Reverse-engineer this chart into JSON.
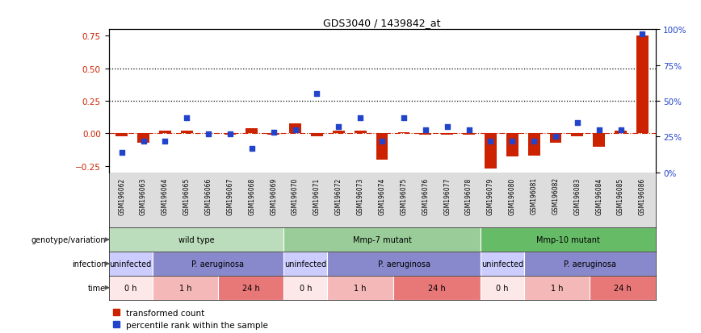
{
  "title": "GDS3040 / 1439842_at",
  "samples": [
    "GSM196062",
    "GSM196063",
    "GSM196064",
    "GSM196065",
    "GSM196066",
    "GSM196067",
    "GSM196068",
    "GSM196069",
    "GSM196070",
    "GSM196071",
    "GSM196072",
    "GSM196073",
    "GSM196074",
    "GSM196075",
    "GSM196076",
    "GSM196077",
    "GSM196078",
    "GSM196079",
    "GSM196080",
    "GSM196081",
    "GSM196082",
    "GSM196083",
    "GSM196084",
    "GSM196085",
    "GSM196086"
  ],
  "red_values": [
    -0.02,
    -0.07,
    0.02,
    0.02,
    0.0,
    -0.01,
    0.04,
    -0.01,
    0.08,
    -0.02,
    0.02,
    0.02,
    -0.2,
    0.01,
    -0.01,
    -0.01,
    -0.01,
    -0.27,
    -0.18,
    -0.17,
    -0.07,
    -0.02,
    -0.1,
    0.02,
    0.75
  ],
  "blue_values": [
    0.14,
    0.22,
    0.22,
    0.38,
    0.27,
    0.27,
    0.17,
    0.28,
    0.3,
    0.55,
    0.32,
    0.38,
    0.22,
    0.38,
    0.3,
    0.32,
    0.3,
    0.22,
    0.22,
    0.22,
    0.25,
    0.35,
    0.3,
    0.3,
    0.97
  ],
  "ylim_left": [
    -0.3,
    0.8
  ],
  "ylim_right": [
    0,
    100
  ],
  "yticks_left": [
    -0.25,
    0.0,
    0.25,
    0.5,
    0.75
  ],
  "yticks_right": [
    0,
    25,
    50,
    75,
    100
  ],
  "hlines": [
    0.25,
    0.5
  ],
  "red_color": "#cc2200",
  "blue_color": "#2244cc",
  "genotype_groups": [
    {
      "label": "wild type",
      "start": 0,
      "end": 8,
      "color": "#bbddbb"
    },
    {
      "label": "Mmp-7 mutant",
      "start": 8,
      "end": 17,
      "color": "#99cc99"
    },
    {
      "label": "Mmp-10 mutant",
      "start": 17,
      "end": 25,
      "color": "#66bb66"
    }
  ],
  "infection_groups": [
    {
      "label": "uninfected",
      "start": 0,
      "end": 2,
      "color": "#ccccff"
    },
    {
      "label": "P. aeruginosa",
      "start": 2,
      "end": 8,
      "color": "#8888cc"
    },
    {
      "label": "uninfected",
      "start": 8,
      "end": 10,
      "color": "#ccccff"
    },
    {
      "label": "P. aeruginosa",
      "start": 10,
      "end": 17,
      "color": "#8888cc"
    },
    {
      "label": "uninfected",
      "start": 17,
      "end": 19,
      "color": "#ccccff"
    },
    {
      "label": "P. aeruginosa",
      "start": 19,
      "end": 25,
      "color": "#8888cc"
    }
  ],
  "time_groups": [
    {
      "label": "0 h",
      "start": 0,
      "end": 2,
      "color": "#fce8e8"
    },
    {
      "label": "1 h",
      "start": 2,
      "end": 5,
      "color": "#f5b8b8"
    },
    {
      "label": "24 h",
      "start": 5,
      "end": 8,
      "color": "#e87878"
    },
    {
      "label": "0 h",
      "start": 8,
      "end": 10,
      "color": "#fce8e8"
    },
    {
      "label": "1 h",
      "start": 10,
      "end": 13,
      "color": "#f5b8b8"
    },
    {
      "label": "24 h",
      "start": 13,
      "end": 17,
      "color": "#e87878"
    },
    {
      "label": "0 h",
      "start": 17,
      "end": 19,
      "color": "#fce8e8"
    },
    {
      "label": "1 h",
      "start": 19,
      "end": 22,
      "color": "#f5b8b8"
    },
    {
      "label": "24 h",
      "start": 22,
      "end": 25,
      "color": "#e87878"
    }
  ],
  "row_labels": [
    "genotype/variation",
    "infection",
    "time"
  ],
  "legend_red": "transformed count",
  "legend_blue": "percentile rank within the sample",
  "tick_bg_color": "#dddddd"
}
